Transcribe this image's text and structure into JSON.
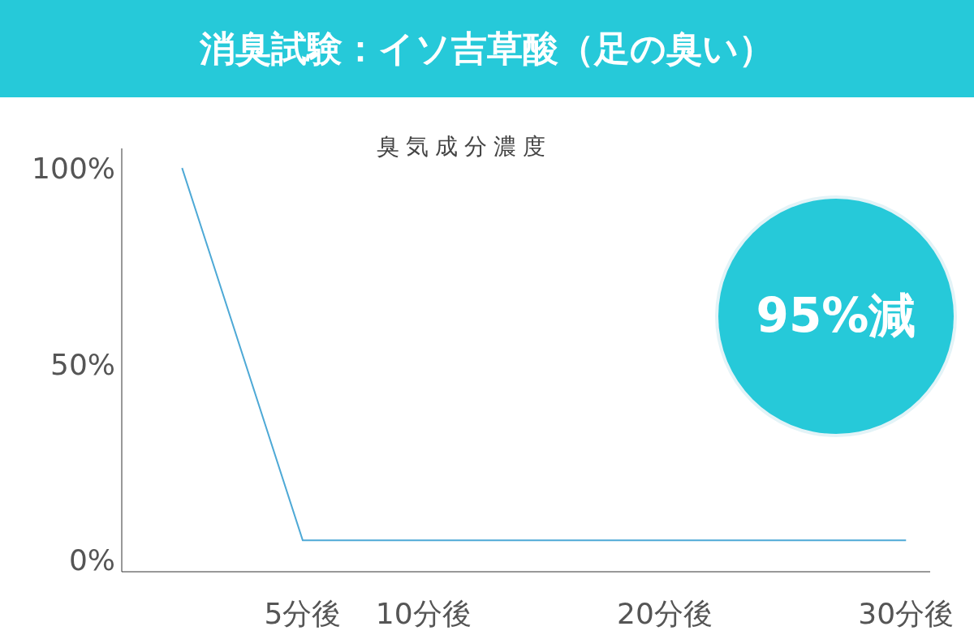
{
  "chart_data": {
    "type": "line",
    "title": "消臭試験：イソ吉草酸（足の臭い）",
    "ylabel": "臭気成分濃度",
    "x": [
      0,
      5,
      10,
      20,
      30
    ],
    "series": [
      {
        "color": "#4ea9d6",
        "values": [
          100,
          5,
          5,
          5,
          5
        ]
      }
    ],
    "xlim": [
      -2.5,
      31
    ],
    "xticks": [
      {
        "value": 5,
        "label": "5分後"
      },
      {
        "value": 10,
        "label": "10分後"
      },
      {
        "value": 20,
        "label": "20分後"
      },
      {
        "value": 30,
        "label": "30分後"
      }
    ],
    "ylim": [
      -3,
      105
    ],
    "yticks": [
      {
        "value": 0,
        "label": "0%"
      },
      {
        "value": 50,
        "label": "50%"
      },
      {
        "value": 100,
        "label": "100%"
      }
    ],
    "annotations": [
      "95%減"
    ],
    "grid": false,
    "legend": false,
    "marker": "none",
    "line_style": "solid"
  }
}
